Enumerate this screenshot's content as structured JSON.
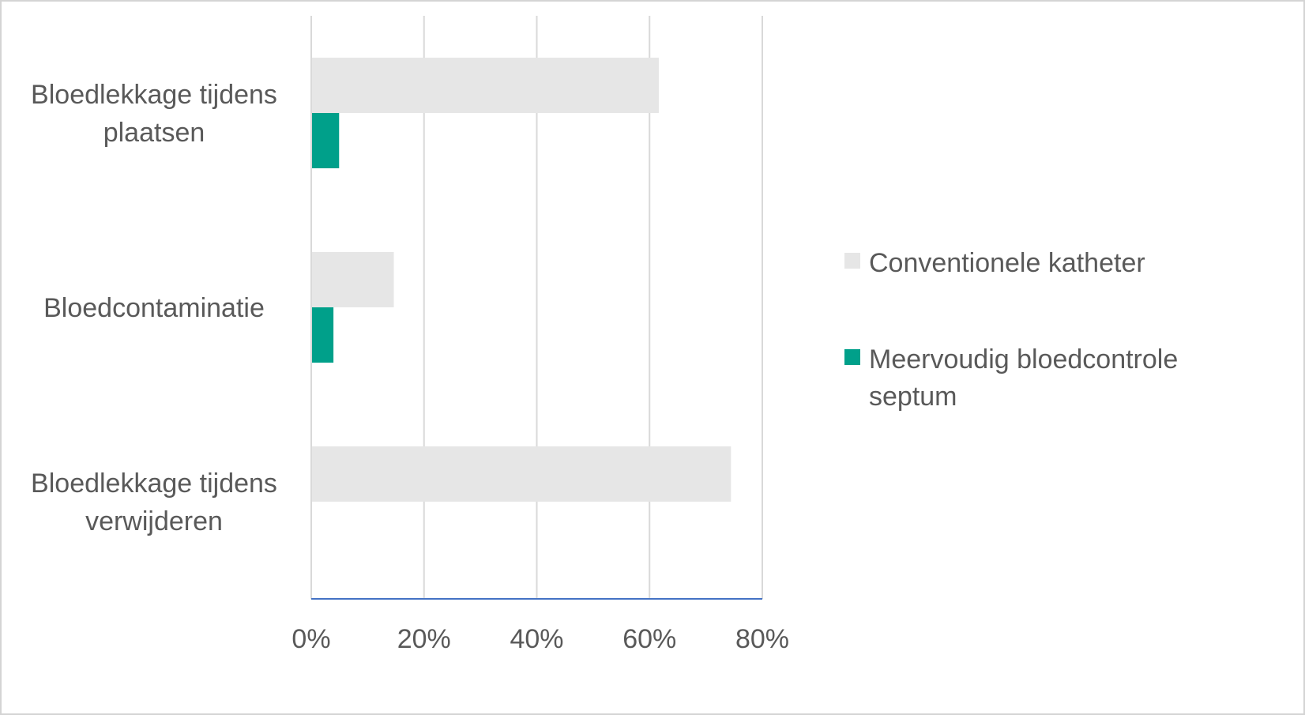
{
  "chart_data": {
    "type": "bar",
    "orientation": "horizontal",
    "categories": [
      [
        "Bloedlekkage tijdens",
        "plaatsen"
      ],
      [
        "Bloedcontaminatie"
      ],
      [
        "Bloedlekkage tijdens",
        "verwijderen"
      ]
    ],
    "series": [
      {
        "name": "Conventionele katheter",
        "legend_lines": [
          "Conventionele katheter"
        ],
        "color": "#e6e6e6",
        "values": [
          61.5,
          14.5,
          74.3
        ]
      },
      {
        "name": "Meervoudig bloedcontrole septum",
        "legend_lines": [
          "Meervoudig bloedcontrole",
          "septum"
        ],
        "color": "#00a08a",
        "values": [
          4.8,
          3.8,
          0
        ]
      }
    ],
    "xlim": [
      0,
      80
    ],
    "xticks": [
      "0%",
      "20%",
      "40%",
      "60%",
      "80%"
    ],
    "xtick_values": [
      0,
      20,
      40,
      60,
      80
    ],
    "grid": true,
    "legend_position": "right",
    "gridline_color": "#d9d9d9",
    "axis_color": "#4472c4"
  }
}
